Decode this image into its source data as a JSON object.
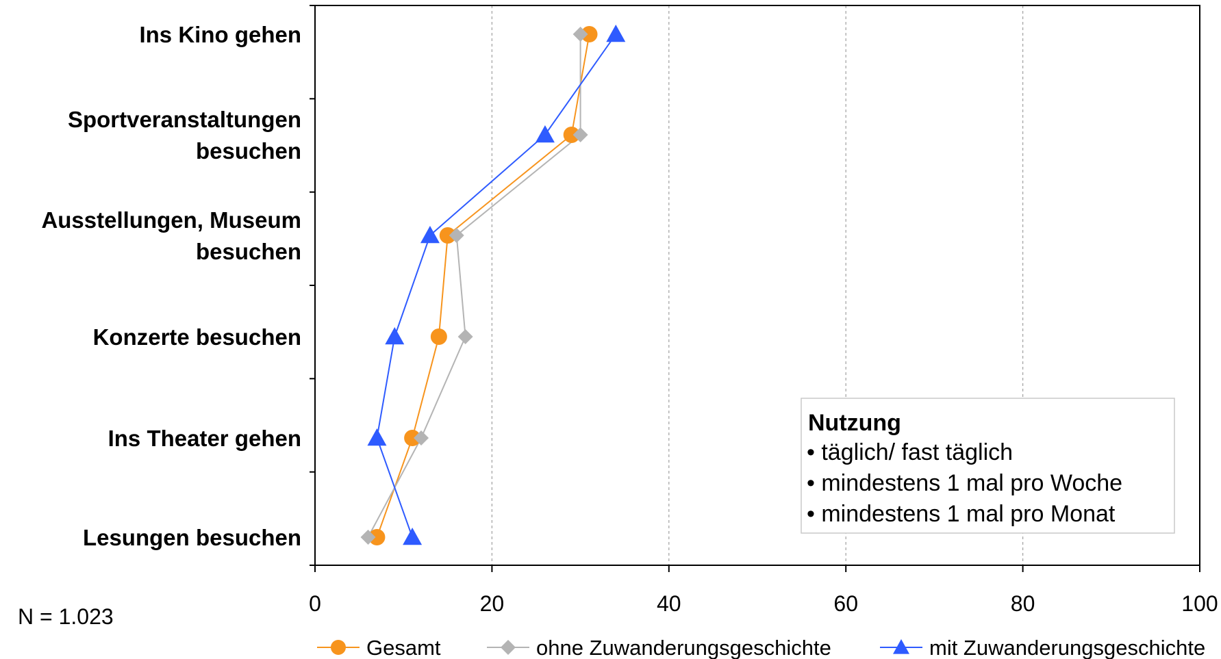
{
  "chart_data": {
    "type": "line",
    "orientation": "horizontal",
    "categories": [
      [
        "Ins Kino gehen"
      ],
      [
        "Sportveranstaltungen",
        "besuchen"
      ],
      [
        "Ausstellungen, Museum",
        "besuchen"
      ],
      [
        "Konzerte besuchen"
      ],
      [
        "Ins Theater gehen"
      ],
      [
        "Lesungen besuchen"
      ]
    ],
    "xlim": [
      0,
      100
    ],
    "xticks": [
      "0",
      "20",
      "40",
      "60",
      "80",
      "100"
    ],
    "grid": "vertical dashed",
    "series": [
      {
        "name": "Gesamt",
        "color": "#F7941D",
        "marker": "circle",
        "values": [
          31,
          29,
          15,
          14,
          11,
          7
        ]
      },
      {
        "name": "ohne Zuwanderungsgeschichte",
        "color": "#B4B4B4",
        "marker": "diamond",
        "values": [
          30,
          30,
          16,
          17,
          12,
          6
        ]
      },
      {
        "name": "mit Zuwanderungsgeschichte",
        "color": "#2E5BFF",
        "marker": "triangle",
        "values": [
          34,
          26,
          13,
          9,
          7,
          11
        ]
      }
    ],
    "legend_position": "bottom",
    "annotation_box": {
      "title": "Nutzung",
      "lines": [
        "• täglich/ fast täglich",
        "• mindestens 1 mal pro Woche",
        "• mindestens 1 mal pro Monat"
      ]
    },
    "note": "N = 1.023"
  }
}
